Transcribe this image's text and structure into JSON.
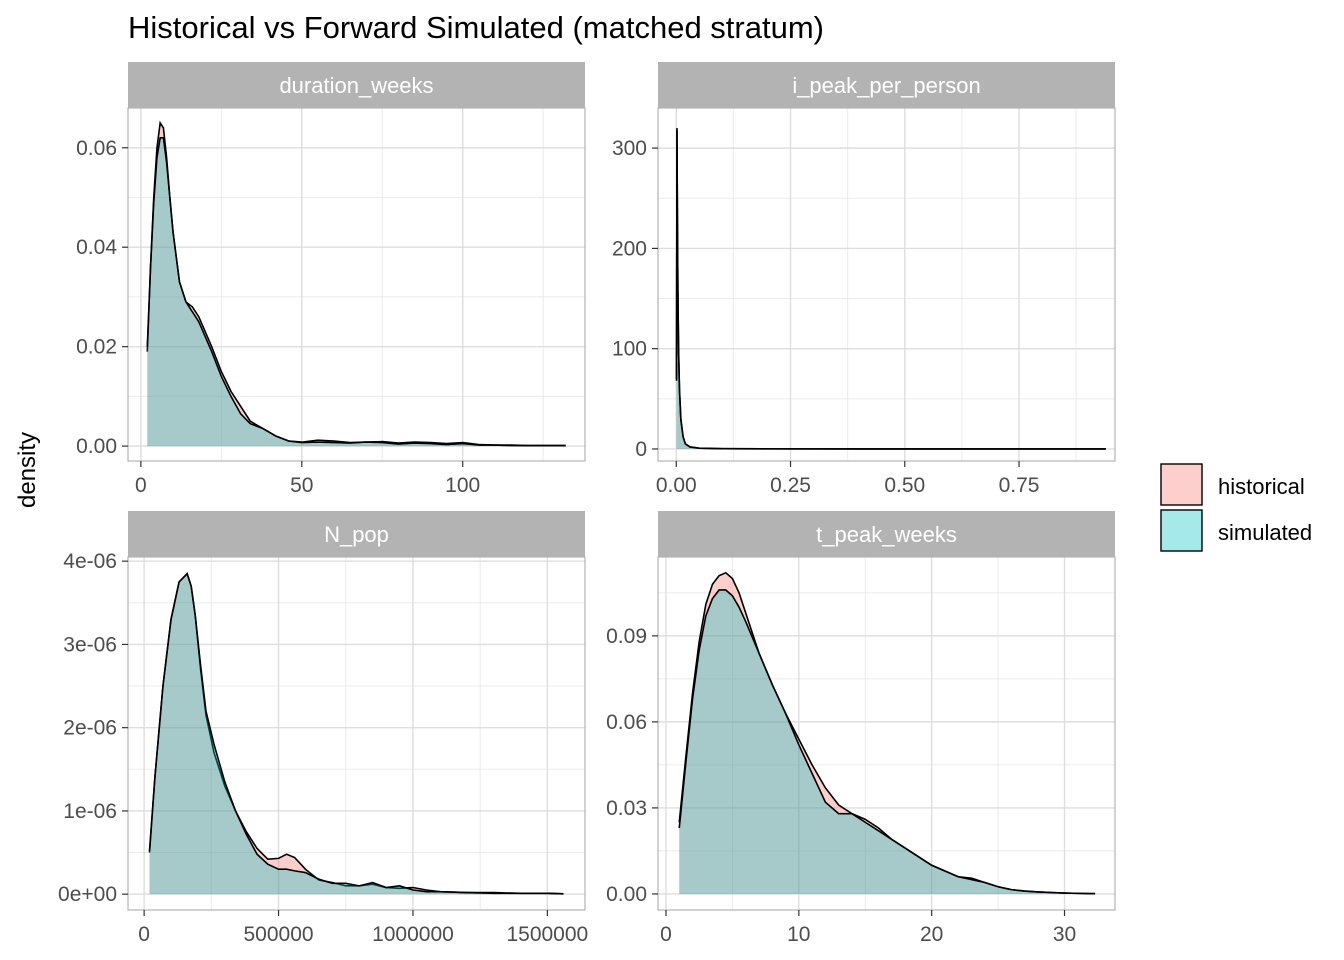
{
  "chart_data": {
    "type": "area",
    "title": "Historical vs Forward Simulated (matched stratum)",
    "ylabel": "density",
    "legend": {
      "placement": "right",
      "entries": [
        {
          "name": "historical",
          "color": "#F8766D"
        },
        {
          "name": "simulated",
          "color": "#00BFC4"
        }
      ]
    },
    "grid": true,
    "fill_alpha": 0.35,
    "panels": [
      {
        "name": "duration_weeks",
        "xlim": [
          -4,
          138
        ],
        "ylim": [
          -0.003,
          0.068
        ],
        "x_ticks": [
          0,
          50,
          100
        ],
        "x_tick_labels": [
          "0",
          "50",
          "100"
        ],
        "y_ticks": [
          0,
          0.02,
          0.04,
          0.06
        ],
        "y_tick_labels": [
          "0.00",
          "0.02",
          "0.04",
          "0.06"
        ],
        "series": [
          {
            "name": "historical",
            "x": [
              2,
              3,
              4,
              5,
              6,
              7,
              8,
              9,
              10,
              12,
              14,
              16,
              18,
              20,
              22,
              25,
              28,
              31,
              34,
              38,
              42,
              46,
              50,
              55,
              60,
              65,
              70,
              75,
              80,
              85,
              90,
              95,
              100,
              105,
              110,
              115,
              120,
              125,
              130,
              132
            ],
            "y": [
              0.019,
              0.036,
              0.05,
              0.06,
              0.065,
              0.064,
              0.058,
              0.05,
              0.043,
              0.033,
              0.029,
              0.028,
              0.026,
              0.023,
              0.02,
              0.015,
              0.011,
              0.008,
              0.005,
              0.0035,
              0.002,
              0.001,
              0.0008,
              0.0012,
              0.001,
              0.0007,
              0.0008,
              0.0009,
              0.0006,
              0.0008,
              0.0007,
              0.0005,
              0.0007,
              0.0003,
              0.0002,
              0.0002,
              0.0001,
              0.0001,
              0.0001,
              0.0001
            ]
          },
          {
            "name": "simulated",
            "x": [
              2,
              3,
              4,
              5,
              6,
              7,
              8,
              9,
              10,
              12,
              14,
              16,
              18,
              20,
              22,
              25,
              28,
              31,
              34,
              38,
              42,
              46,
              50,
              55,
              60,
              65,
              70,
              75,
              80,
              85,
              90,
              95,
              100,
              105,
              110,
              115,
              120,
              125,
              130,
              132
            ],
            "y": [
              0.02,
              0.036,
              0.049,
              0.058,
              0.062,
              0.062,
              0.057,
              0.05,
              0.043,
              0.033,
              0.029,
              0.027,
              0.025,
              0.022,
              0.019,
              0.014,
              0.01,
              0.0065,
              0.0045,
              0.0035,
              0.002,
              0.001,
              0.0007,
              0.0008,
              0.0007,
              0.0006,
              0.0008,
              0.0007,
              0.0004,
              0.0006,
              0.0005,
              0.0003,
              0.0005,
              0.0002,
              0.0002,
              0.0001,
              0.0001,
              0.0001,
              0.0001,
              0.0001
            ]
          }
        ]
      },
      {
        "name": "i_peak_per_person",
        "xlim": [
          -0.04,
          0.96
        ],
        "ylim": [
          -12,
          340
        ],
        "x_ticks": [
          0,
          0.25,
          0.5,
          0.75
        ],
        "x_tick_labels": [
          "0.00",
          "0.25",
          "0.50",
          "0.75"
        ],
        "y_ticks": [
          0,
          100,
          200,
          300
        ],
        "y_tick_labels": [
          "0",
          "100",
          "200",
          "300"
        ],
        "series": [
          {
            "name": "historical",
            "x": [
              0.0005,
              0.0015,
              0.0025,
              0.0035,
              0.005,
              0.007,
              0.01,
              0.015,
              0.02,
              0.03,
              0.05,
              0.1,
              0.2,
              0.4,
              0.6,
              0.8,
              0.94
            ],
            "y": [
              70,
              320,
              230,
              160,
              100,
              60,
              30,
              12,
              5,
              2,
              0.8,
              0.3,
              0.1,
              0.05,
              0.02,
              0.01,
              0.01
            ]
          },
          {
            "name": "simulated",
            "x": [
              0.0005,
              0.0015,
              0.0025,
              0.0035,
              0.005,
              0.007,
              0.01,
              0.015,
              0.02,
              0.03,
              0.05,
              0.1,
              0.2,
              0.4,
              0.6,
              0.8,
              0.94
            ],
            "y": [
              68,
              318,
              228,
              158,
              98,
              58,
              29,
              12,
              5,
              2,
              0.8,
              0.3,
              0.1,
              0.05,
              0.02,
              0.01,
              0.01
            ]
          }
        ]
      },
      {
        "name": "N_pop",
        "xlim": [
          -60000,
          1640000
        ],
        "ylim": [
          -1.9e-07,
          4.05e-06
        ],
        "x_ticks": [
          0,
          500000,
          1000000,
          1500000
        ],
        "x_tick_labels": [
          "0",
          "500000",
          "1000000",
          "1500000"
        ],
        "y_ticks": [
          0,
          1e-06,
          2e-06,
          3e-06,
          4e-06
        ],
        "y_tick_labels": [
          "0e+00",
          "1e-06",
          "2e-06",
          "3e-06",
          "4e-06"
        ],
        "series": [
          {
            "name": "historical",
            "x": [
              20000,
              40000,
              70000,
              100000,
              130000,
              160000,
              175000,
              190000,
              210000,
              230000,
              260000,
              300000,
              340000,
              380000,
              420000,
              460000,
              500000,
              530000,
              560000,
              600000,
              650000,
              700000,
              750000,
              800000,
              850000,
              900000,
              950000,
              1000000,
              1050000,
              1100000,
              1200000,
              1300000,
              1400000,
              1500000,
              1560000
            ],
            "y": [
              5e-07,
              1.4e-06,
              2.5e-06,
              3.3e-06,
              3.75e-06,
              3.85e-06,
              3.7e-06,
              3.35e-06,
              2.7e-06,
              2.15e-06,
              1.7e-06,
              1.3e-06,
              1e-06,
              7.5e-07,
              5.5e-07,
              4.2e-07,
              4.3e-07,
              4.8e-07,
              4.4e-07,
              3e-07,
              1.7e-07,
              1.4e-07,
              1e-07,
              1e-07,
              1.2e-07,
              8e-08,
              7e-08,
              8e-08,
              5e-08,
              3e-08,
              2e-08,
              2e-08,
              1e-08,
              1e-08,
              5e-09
            ]
          },
          {
            "name": "simulated",
            "x": [
              20000,
              40000,
              70000,
              100000,
              130000,
              160000,
              175000,
              190000,
              210000,
              230000,
              260000,
              300000,
              340000,
              380000,
              420000,
              460000,
              500000,
              530000,
              560000,
              600000,
              650000,
              700000,
              750000,
              800000,
              850000,
              900000,
              950000,
              1000000,
              1050000,
              1100000,
              1200000,
              1300000,
              1400000,
              1500000,
              1560000
            ],
            "y": [
              5.2e-07,
              1.4e-06,
              2.5e-06,
              3.3e-06,
              3.75e-06,
              3.85e-06,
              3.7e-06,
              3.35e-06,
              2.75e-06,
              2.2e-06,
              1.8e-06,
              1.35e-06,
              1e-06,
              7.2e-07,
              4.8e-07,
              3.6e-07,
              3e-07,
              3e-07,
              2.8e-07,
              2.6e-07,
              1.8e-07,
              1.3e-07,
              1.3e-07,
              1e-07,
              1.4e-07,
              8e-08,
              1e-07,
              5e-08,
              3e-08,
              3e-08,
              2e-08,
              1e-08,
              1e-08,
              1e-08,
              5e-09
            ]
          }
        ]
      },
      {
        "name": "t_peak_weeks",
        "xlim": [
          -0.6,
          33.8
        ],
        "ylim": [
          -0.0056,
          0.1175
        ],
        "x_ticks": [
          0,
          10,
          20,
          30
        ],
        "x_tick_labels": [
          "0",
          "10",
          "20",
          "30"
        ],
        "y_ticks": [
          0,
          0.03,
          0.06,
          0.09
        ],
        "y_tick_labels": [
          "0.00",
          "0.03",
          "0.06",
          "0.09"
        ],
        "series": [
          {
            "name": "historical",
            "x": [
              1,
              1.5,
              2,
              2.5,
              3,
              3.5,
              4,
              4.5,
              5,
              5.5,
              6,
              7,
              8,
              9,
              10,
              11,
              12,
              13,
              14,
              15,
              16,
              17,
              18,
              19,
              20,
              21,
              22,
              23,
              24,
              25,
              26,
              27,
              28,
              29,
              30,
              31,
              32.3
            ],
            "y": [
              0.025,
              0.048,
              0.07,
              0.088,
              0.101,
              0.108,
              0.111,
              0.112,
              0.11,
              0.105,
              0.098,
              0.084,
              0.073,
              0.063,
              0.054,
              0.045,
              0.037,
              0.031,
              0.028,
              0.026,
              0.023,
              0.019,
              0.016,
              0.013,
              0.01,
              0.008,
              0.006,
              0.0055,
              0.004,
              0.0025,
              0.0015,
              0.001,
              0.0007,
              0.0005,
              0.0003,
              0.0002,
              0.0001
            ]
          },
          {
            "name": "simulated",
            "x": [
              1,
              1.5,
              2,
              2.5,
              3,
              3.5,
              4,
              4.5,
              5,
              5.5,
              6,
              7,
              8,
              9,
              10,
              11,
              12,
              13,
              14,
              15,
              16,
              17,
              18,
              19,
              20,
              21,
              22,
              23,
              24,
              25,
              26,
              27,
              28,
              29,
              30,
              31,
              32.3
            ],
            "y": [
              0.023,
              0.046,
              0.068,
              0.085,
              0.097,
              0.103,
              0.106,
              0.106,
              0.104,
              0.1,
              0.095,
              0.084,
              0.073,
              0.063,
              0.052,
              0.042,
              0.032,
              0.028,
              0.028,
              0.025,
              0.022,
              0.019,
              0.016,
              0.013,
              0.01,
              0.008,
              0.006,
              0.005,
              0.004,
              0.0025,
              0.0015,
              0.001,
              0.0007,
              0.0005,
              0.0003,
              0.0002,
              0.0001
            ]
          }
        ]
      }
    ]
  }
}
